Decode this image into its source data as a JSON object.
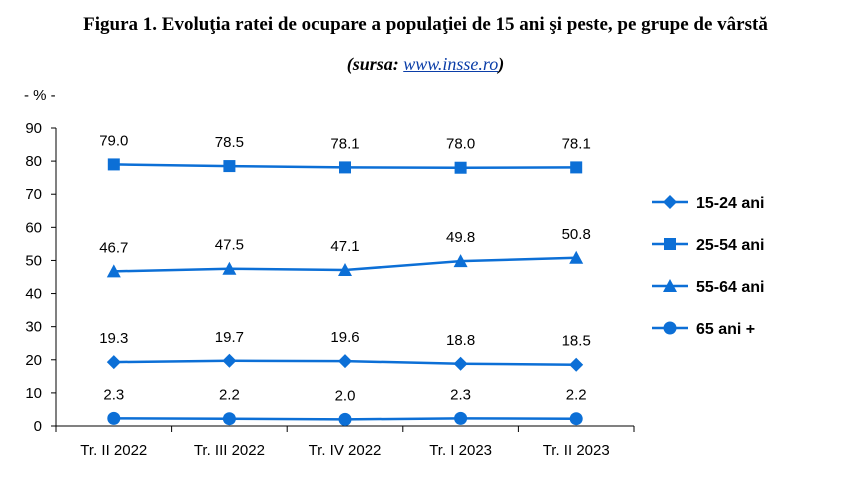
{
  "header": {
    "title": "Figura 1. Evoluţia ratei de ocupare a populaţiei de 15 ani şi peste, pe grupe de vârstă",
    "source_prefix": "(sursa: ",
    "source_link": "www.insse.ro",
    "source_suffix": ")"
  },
  "chart_data": {
    "type": "line",
    "title": "Figura 1. Evoluţia ratei de ocupare a populaţiei de 15 ani şi peste, pe grupe de vârstă",
    "ylabel": "- % -",
    "xlabel": "",
    "ylim": [
      0,
      90
    ],
    "yticks": [
      0,
      10,
      20,
      30,
      40,
      50,
      60,
      70,
      80,
      90
    ],
    "categories": [
      "Tr. II 2022",
      "Tr. III 2022",
      "Tr. IV 2022",
      "Tr. I 2023",
      "Tr. II 2023"
    ],
    "color": "#0c6fd6",
    "legend_position": "right",
    "grid": false,
    "series": [
      {
        "name": "15-24 ani",
        "marker": "diamond",
        "values": [
          19.3,
          19.7,
          19.6,
          18.8,
          18.5
        ],
        "labels": [
          "19.3",
          "19.7",
          "19.6",
          "18.8",
          "18.5"
        ]
      },
      {
        "name": "25-54 ani",
        "marker": "square",
        "values": [
          79.0,
          78.5,
          78.1,
          78.0,
          78.1
        ],
        "labels": [
          "79.0",
          "78.5",
          "78.1",
          "78.0",
          "78.1"
        ]
      },
      {
        "name": "55-64 ani",
        "marker": "triangle",
        "values": [
          46.7,
          47.5,
          47.1,
          49.8,
          50.8
        ],
        "labels": [
          "46.7",
          "47.5",
          "47.1",
          "49.8",
          "50.8"
        ]
      },
      {
        "name": "65 ani +",
        "marker": "circle",
        "values": [
          2.3,
          2.2,
          2.0,
          2.3,
          2.2
        ],
        "labels": [
          "2.3",
          "2.2",
          "2.0",
          "2.3",
          "2.2"
        ]
      }
    ]
  }
}
